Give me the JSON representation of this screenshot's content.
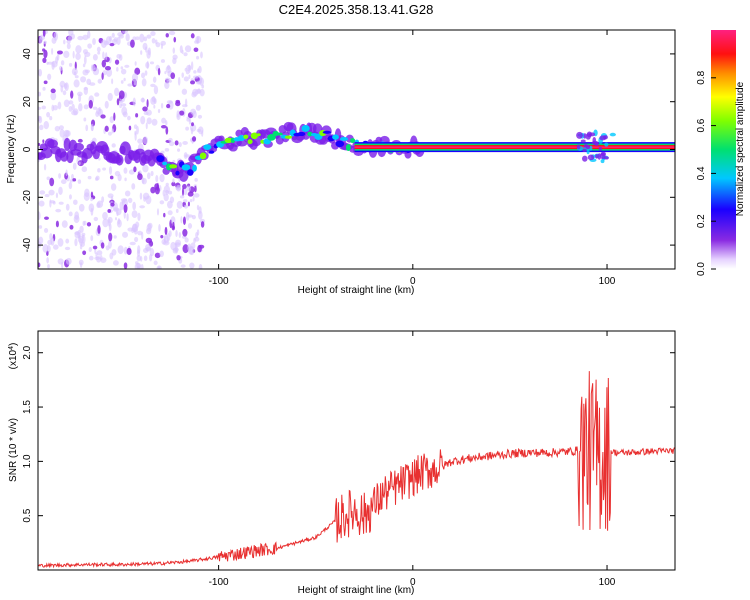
{
  "page_title": "C2E4.2025.358.13.41.G28",
  "chart_data": [
    {
      "type": "heatmap",
      "title": "C2E4.2025.358.13.41.G28",
      "xlabel": "Height of straight line (km)",
      "ylabel": "Frequency (Hz)",
      "xlim": [
        -193,
        135
      ],
      "ylim": [
        -50,
        50
      ],
      "x_ticks": [
        -100,
        0,
        100
      ],
      "y_ticks": [
        -40,
        -20,
        0,
        20,
        40
      ],
      "colorbar": {
        "label": "Normalized spectral amplitude",
        "range": [
          0,
          1
        ],
        "ticks": [
          0.0,
          0.2,
          0.4,
          0.6,
          0.8
        ]
      },
      "line_track": [
        {
          "x": -193,
          "y": 0
        },
        {
          "x": -170,
          "y": -1
        },
        {
          "x": -150,
          "y": -2
        },
        {
          "x": -135,
          "y": -3
        },
        {
          "x": -125,
          "y": -8
        },
        {
          "x": -115,
          "y": -8
        },
        {
          "x": -105,
          "y": 0
        },
        {
          "x": -95,
          "y": 3
        },
        {
          "x": -85,
          "y": 5
        },
        {
          "x": -75,
          "y": 4
        },
        {
          "x": -65,
          "y": 7
        },
        {
          "x": -55,
          "y": 8
        },
        {
          "x": -45,
          "y": 6
        },
        {
          "x": -35,
          "y": 3
        },
        {
          "x": -25,
          "y": 1.5
        },
        {
          "x": -10,
          "y": 1
        },
        {
          "x": 0,
          "y": 1
        },
        {
          "x": 135,
          "y": 1
        }
      ]
    },
    {
      "type": "line",
      "xlabel": "Height of straight line (km)",
      "ylabel": "SNR (10 * v/v)",
      "y_multiplier": "(x10",
      "y_multiplier_exp": "4",
      "y_multiplier_close": ")",
      "xlim": [
        -193,
        135
      ],
      "ylim": [
        0,
        2.2
      ],
      "x_ticks": [
        -100,
        0,
        100
      ],
      "y_ticks": [
        0.5,
        1.0,
        1.5,
        2.0
      ],
      "series": [
        {
          "name": "SNR",
          "color": "#e83030",
          "x": [
            -193,
            -170,
            -150,
            -130,
            -115,
            -100,
            -90,
            -80,
            -70,
            -60,
            -50,
            -40,
            -30,
            -25,
            -20,
            -15,
            -10,
            -5,
            0,
            5,
            10,
            15,
            20,
            30,
            40,
            50,
            60,
            70,
            80,
            85,
            90,
            95,
            100,
            105,
            110,
            120,
            135
          ],
          "values": [
            0.04,
            0.05,
            0.05,
            0.06,
            0.08,
            0.12,
            0.15,
            0.18,
            0.2,
            0.25,
            0.3,
            0.45,
            0.55,
            0.5,
            0.6,
            0.7,
            0.75,
            0.8,
            0.85,
            0.9,
            0.92,
            0.95,
            1.0,
            1.03,
            1.05,
            1.07,
            1.08,
            1.08,
            1.09,
            1.1,
            1.1,
            1.05,
            1.1,
            1.08,
            1.08,
            1.09,
            1.1
          ]
        }
      ]
    }
  ]
}
